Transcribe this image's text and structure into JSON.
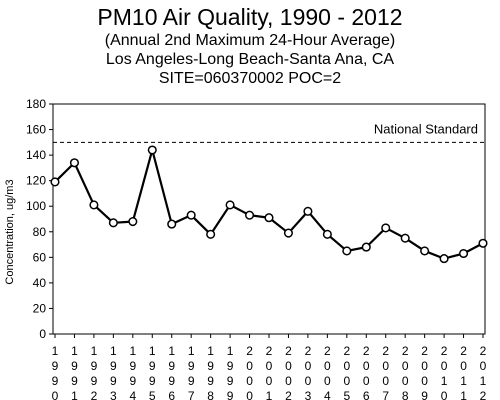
{
  "chart_data": {
    "type": "line",
    "title": "PM10 Air Quality, 1990 - 2012",
    "subtitle": "(Annual 2nd Maximum 24-Hour Average)",
    "location": "Los Angeles-Long Beach-Santa Ana, CA",
    "site": "SITE=060370002 POC=2",
    "xlabel": "",
    "ylabel": "Concentration, ug/m3",
    "ylim": [
      0,
      180
    ],
    "yticks": [
      "0",
      "20",
      "40",
      "60",
      "80",
      "100",
      "120",
      "140",
      "160",
      "180"
    ],
    "grid": false,
    "x": [
      "1990",
      "1991",
      "1992",
      "1993",
      "1994",
      "1995",
      "1996",
      "1997",
      "1998",
      "1999",
      "2000",
      "2001",
      "2002",
      "2003",
      "2004",
      "2005",
      "2006",
      "2007",
      "2008",
      "2009",
      "2010",
      "2011",
      "2012"
    ],
    "series": [
      {
        "values": [
          119,
          134,
          101,
          87,
          88,
          144,
          86,
          93,
          78,
          101,
          93,
          91,
          79,
          96,
          78,
          65,
          68,
          83,
          75,
          65,
          59,
          63,
          71
        ]
      }
    ],
    "reference_line": {
      "label": "National Standard",
      "value": 150
    },
    "colors": {
      "line": "#000000",
      "reference": "#000000"
    }
  }
}
